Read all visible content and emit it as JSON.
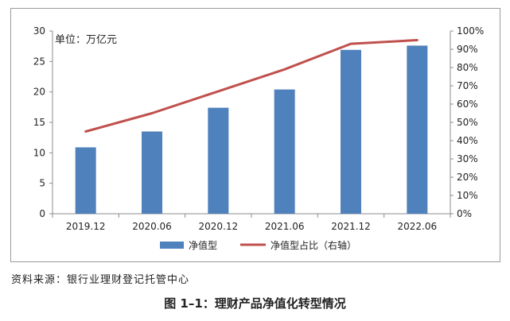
{
  "chart_data": {
    "type": "bar",
    "unit_label": "单位：万亿元",
    "categories": [
      "2019.12",
      "2020.06",
      "2020.12",
      "2021.06",
      "2021.12",
      "2022.06"
    ],
    "series": [
      {
        "name": "净值型",
        "type": "bar",
        "axis": "left",
        "color": "#4f81bd",
        "values": [
          10.9,
          13.5,
          17.4,
          20.4,
          26.9,
          27.6
        ]
      },
      {
        "name": "净值型占比（右轴）",
        "type": "line",
        "axis": "right",
        "color": "#c0504d",
        "values": [
          45,
          55,
          67,
          79,
          93,
          95
        ]
      }
    ],
    "y_left": {
      "ylim": [
        0,
        30
      ],
      "ticks": [
        "0",
        "5",
        "10",
        "15",
        "20",
        "25",
        "30"
      ]
    },
    "y_right": {
      "ylim": [
        0,
        100
      ],
      "ticks": [
        "0%",
        "10%",
        "20%",
        "30%",
        "40%",
        "50%",
        "60%",
        "70%",
        "80%",
        "90%",
        "100%"
      ]
    },
    "grid": false,
    "legend_position": "bottom"
  },
  "source": "资料来源：银行业理财登记托管中心",
  "caption": "图 1–1：理财产品净值化转型情况"
}
